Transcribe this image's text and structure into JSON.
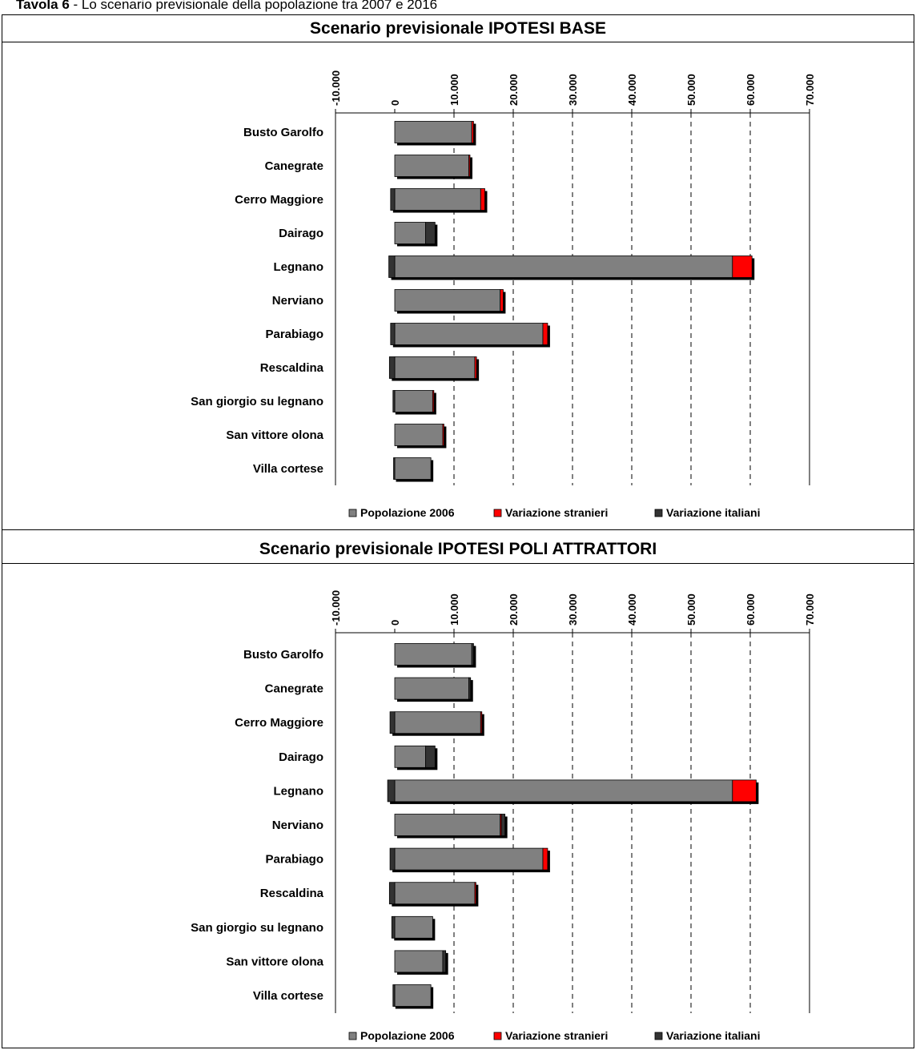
{
  "caption": {
    "bold": "Tavola 6",
    "text": " - Lo scenario previsionale della popolazione tra 2007 e 2016"
  },
  "colors": {
    "popolazione": "#808080",
    "stranieri": "#ff0000",
    "italiani": "#333333",
    "shadow": "#000000"
  },
  "legend": [
    "Popolazione 2006",
    "Variazione stranieri",
    "Variazione italiani"
  ],
  "chart_data": [
    {
      "type": "bar",
      "orientation": "horizontal",
      "stacked": true,
      "title": "Scenario previsionale IPOTESI BASE",
      "categories": [
        "Busto Garolfo",
        "Canegrate",
        "Cerro Maggiore",
        "Dairago",
        "Legnano",
        "Nerviano",
        "Parabiago",
        "Rescaldina",
        "San giorgio su legnano",
        "San vittore olona",
        "Villa cortese"
      ],
      "series": [
        {
          "name": "Popolazione 2006",
          "values": [
            13000,
            12500,
            14500,
            5200,
            57000,
            17800,
            25000,
            13500,
            6400,
            8100,
            6100
          ]
        },
        {
          "name": "Variazione stranieri",
          "values": [
            300,
            200,
            700,
            0,
            3300,
            500,
            800,
            300,
            200,
            200,
            0
          ]
        },
        {
          "name": "Variazione italiani",
          "values": [
            0,
            0,
            -700,
            1600,
            -1000,
            0,
            -700,
            -900,
            -300,
            0,
            -200
          ]
        }
      ],
      "xlim": [
        -10000,
        70000
      ],
      "xticks": [
        "-10.000",
        "0",
        "10.000",
        "20.000",
        "30.000",
        "40.000",
        "50.000",
        "60.000",
        "70.000"
      ],
      "grid": "vertical-dashed",
      "legend_position": "bottom"
    },
    {
      "type": "bar",
      "orientation": "horizontal",
      "stacked": true,
      "title": "Scenario previsionale IPOTESI POLI ATTRATTORI",
      "categories": [
        "Busto Garolfo",
        "Canegrate",
        "Cerro Maggiore",
        "Dairago",
        "Legnano",
        "Nerviano",
        "Parabiago",
        "Rescaldina",
        "San giorgio su legnano",
        "San vittore olona",
        "Villa cortese"
      ],
      "series": [
        {
          "name": "Popolazione 2006",
          "values": [
            13000,
            12500,
            14500,
            5200,
            57000,
            17800,
            25000,
            13500,
            6400,
            8100,
            6100
          ]
        },
        {
          "name": "Variazione stranieri",
          "values": [
            0,
            0,
            200,
            0,
            4000,
            200,
            800,
            200,
            0,
            0,
            0
          ]
        },
        {
          "name": "Variazione italiani",
          "values": [
            300,
            300,
            -800,
            1600,
            -1200,
            600,
            -800,
            -900,
            -500,
            500,
            -300
          ]
        }
      ],
      "xlim": [
        -10000,
        70000
      ],
      "xticks": [
        "-10.000",
        "0",
        "10.000",
        "20.000",
        "30.000",
        "40.000",
        "50.000",
        "60.000",
        "70.000"
      ],
      "grid": "vertical-dashed",
      "legend_position": "bottom"
    }
  ]
}
